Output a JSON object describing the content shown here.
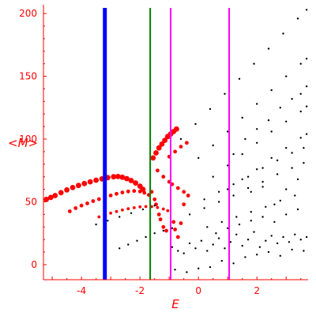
{
  "chart_data": {
    "type": "scatter",
    "title": "",
    "xlabel": "E",
    "ylabel": "<M>",
    "xlim": [
      -5.3,
      3.75
    ],
    "ylim": [
      -12,
      207
    ],
    "xticks": [
      -4,
      -2,
      0,
      2
    ],
    "yticks": [
      0,
      50,
      100,
      150,
      200
    ],
    "grid": false,
    "legend": "none",
    "colors": {
      "axis": "#ff0000",
      "red_series": "#ff0000",
      "black_series": "#000000",
      "blue_line": "#0000ff",
      "green_line": "#008000",
      "magenta_line": "#ff00ff"
    },
    "vertical_lines": [
      {
        "x": -3.2,
        "color": "#0000ff",
        "width": "thick"
      },
      {
        "x": -1.65,
        "color": "#008000",
        "width": "normal"
      },
      {
        "x": -0.95,
        "color": "#ff00ff",
        "width": "normal"
      },
      {
        "x": 1.05,
        "color": "#ff00ff",
        "width": "normal"
      }
    ],
    "series": [
      {
        "color": "#ff0000",
        "marker": "large",
        "points": [
          [
            -5.2,
            52
          ],
          [
            -5.05,
            53.5
          ],
          [
            -4.9,
            55
          ],
          [
            -4.7,
            57.3
          ],
          [
            -4.5,
            59.5
          ],
          [
            -4.3,
            61.4
          ],
          [
            -4.1,
            63.1
          ],
          [
            -3.9,
            64.6
          ],
          [
            -3.7,
            66
          ],
          [
            -3.5,
            67.2
          ],
          [
            -3.3,
            68.3
          ],
          [
            -3.1,
            69.3
          ],
          [
            -2.9,
            70
          ],
          [
            -2.75,
            70.2
          ],
          [
            -2.6,
            69.6
          ],
          [
            -2.45,
            68.5
          ],
          [
            -2.3,
            67
          ],
          [
            -2.15,
            65
          ],
          [
            -2.0,
            62.5
          ],
          [
            -1.9,
            60
          ]
        ]
      },
      {
        "color": "#ff0000",
        "marker": "medium",
        "points": [
          [
            -4.4,
            42.5
          ],
          [
            -4.2,
            45
          ],
          [
            -4.0,
            47
          ],
          [
            -3.8,
            48.8
          ],
          [
            -3.6,
            50.6
          ],
          [
            -3.4,
            52.2
          ],
          [
            -3.2,
            53.7
          ],
          [
            -3.0,
            55.1
          ],
          [
            -2.8,
            56.4
          ],
          [
            -2.6,
            57.5
          ],
          [
            -2.4,
            58.3
          ],
          [
            -2.2,
            58.7
          ],
          [
            -2.0,
            58.3
          ],
          [
            -1.85,
            57.2
          ],
          [
            -1.7,
            55.5
          ]
        ]
      },
      {
        "color": "#ff0000",
        "marker": "small",
        "points": [
          [
            -3.4,
            38
          ],
          [
            -3.2,
            39.5
          ],
          [
            -3.0,
            41
          ],
          [
            -2.8,
            42.3
          ],
          [
            -2.6,
            43.5
          ],
          [
            -2.4,
            44.5
          ],
          [
            -2.2,
            45.3
          ],
          [
            -2.0,
            46
          ],
          [
            -1.8,
            46.3
          ],
          [
            -1.6,
            46.2
          ],
          [
            -1.4,
            45.5
          ],
          [
            -1.2,
            44.3
          ],
          [
            -1.05,
            43
          ]
        ]
      },
      {
        "color": "#ff0000",
        "marker": "large",
        "points": [
          [
            -1.55,
            85
          ],
          [
            -1.45,
            89
          ],
          [
            -1.35,
            93
          ],
          [
            -1.25,
            96
          ],
          [
            -1.15,
            99
          ],
          [
            -1.05,
            102
          ],
          [
            -0.95,
            104
          ],
          [
            -0.85,
            106
          ],
          [
            -0.75,
            108
          ]
        ]
      },
      {
        "color": "#ff0000",
        "marker": "medium",
        "points": [
          [
            -1.0,
            86
          ],
          [
            -0.8,
            90
          ],
          [
            -0.6,
            94
          ],
          [
            -0.4,
            97
          ],
          [
            -1.4,
            75
          ],
          [
            -1.2,
            70
          ],
          [
            -1.0,
            66
          ],
          [
            -0.9,
            64
          ],
          [
            -0.7,
            61
          ],
          [
            -0.5,
            58
          ],
          [
            -0.35,
            55
          ],
          [
            -1.6,
            58
          ],
          [
            -1.5,
            52
          ],
          [
            -1.45,
            48
          ],
          [
            -1.35,
            40
          ],
          [
            -1.3,
            36
          ],
          [
            -1.2,
            30
          ],
          [
            -1.1,
            27
          ],
          [
            -0.85,
            34
          ],
          [
            -0.8,
            28
          ],
          [
            -0.7,
            22
          ],
          [
            -0.5,
            48
          ],
          [
            -0.6,
            33
          ]
        ]
      },
      {
        "color": "#000000",
        "marker": "tiny",
        "points": [
          [
            -0.6,
            100
          ],
          [
            -0.1,
            112
          ],
          [
            0.4,
            124
          ],
          [
            0.9,
            136
          ],
          [
            1.4,
            148
          ],
          [
            1.9,
            160
          ],
          [
            2.4,
            172
          ],
          [
            2.9,
            184
          ],
          [
            3.4,
            196
          ],
          [
            3.7,
            203
          ],
          [
            0.0,
            85
          ],
          [
            0.5,
            95
          ],
          [
            1.0,
            106
          ],
          [
            1.5,
            117
          ],
          [
            2.0,
            128
          ],
          [
            2.5,
            139
          ],
          [
            3.0,
            150
          ],
          [
            3.5,
            160
          ],
          [
            3.7,
            164
          ],
          [
            0.5,
            70
          ],
          [
            1.0,
            79
          ],
          [
            1.5,
            88
          ],
          [
            2.0,
            97
          ],
          [
            2.5,
            106
          ],
          [
            3.0,
            114
          ],
          [
            3.5,
            122
          ],
          [
            3.7,
            126
          ],
          [
            1.0,
            60
          ],
          [
            1.5,
            68
          ],
          [
            2.0,
            76
          ],
          [
            2.5,
            85
          ],
          [
            3.0,
            93
          ],
          [
            3.5,
            101
          ],
          [
            3.7,
            104
          ],
          [
            0.2,
            52
          ],
          [
            0.7,
            58
          ],
          [
            1.2,
            64
          ],
          [
            1.7,
            70
          ],
          [
            2.2,
            77
          ],
          [
            2.7,
            83
          ],
          [
            3.2,
            89
          ],
          [
            3.6,
            93
          ],
          [
            -0.3,
            40
          ],
          [
            0.2,
            45
          ],
          [
            0.7,
            50
          ],
          [
            1.2,
            55
          ],
          [
            1.7,
            61
          ],
          [
            2.2,
            66
          ],
          [
            2.7,
            72
          ],
          [
            3.2,
            77
          ],
          [
            3.6,
            81
          ],
          [
            -3.5,
            32
          ],
          [
            -3.1,
            35
          ],
          [
            -2.7,
            38
          ],
          [
            -2.3,
            41
          ],
          [
            -1.9,
            44
          ],
          [
            -1.5,
            47
          ],
          [
            -2.7,
            13
          ],
          [
            -2.4,
            16
          ],
          [
            -2.1,
            19
          ],
          [
            -1.8,
            22
          ],
          [
            -1.5,
            25
          ],
          [
            -1.2,
            27
          ],
          [
            -0.9,
            29
          ],
          [
            -0.9,
            14
          ],
          [
            -0.7,
            11
          ],
          [
            -0.5,
            9
          ],
          [
            -0.3,
            17
          ],
          [
            -0.1,
            13
          ],
          [
            0.1,
            19
          ],
          [
            0.3,
            11
          ],
          [
            0.5,
            16
          ],
          [
            0.7,
            21
          ],
          [
            0.9,
            13
          ],
          [
            1.1,
            18
          ],
          [
            1.3,
            24
          ],
          [
            1.5,
            15
          ],
          [
            1.7,
            20
          ],
          [
            1.9,
            26
          ],
          [
            2.1,
            14
          ],
          [
            2.3,
            19
          ],
          [
            2.5,
            23
          ],
          [
            2.7,
            17
          ],
          [
            2.9,
            22
          ],
          [
            3.1,
            18
          ],
          [
            3.3,
            24
          ],
          [
            3.5,
            20
          ],
          [
            3.7,
            22
          ],
          [
            -0.8,
            -4
          ],
          [
            -0.4,
            -6
          ],
          [
            0.0,
            -3
          ],
          [
            0.4,
            -2
          ],
          [
            0.8,
            3
          ],
          [
            1.2,
            1
          ],
          [
            1.6,
            6
          ],
          [
            2.0,
            8
          ],
          [
            2.4,
            10
          ],
          [
            2.8,
            7
          ],
          [
            3.2,
            12
          ],
          [
            3.6,
            11
          ],
          [
            0.3,
            30
          ],
          [
            0.8,
            34
          ],
          [
            1.3,
            38
          ],
          [
            1.8,
            42
          ],
          [
            2.3,
            46
          ],
          [
            2.8,
            51
          ],
          [
            3.3,
            55
          ],
          [
            0.6,
            25
          ],
          [
            1.0,
            29
          ],
          [
            1.4,
            32
          ],
          [
            1.8,
            35
          ],
          [
            2.2,
            38
          ],
          [
            2.6,
            34
          ],
          [
            3.0,
            40
          ],
          [
            3.4,
            44
          ],
          [
            1.2,
            88
          ],
          [
            1.6,
            100
          ],
          [
            2.0,
            108
          ],
          [
            2.4,
            115
          ],
          [
            2.8,
            125
          ],
          [
            3.2,
            132
          ],
          [
            3.5,
            136
          ],
          [
            3.7,
            142
          ],
          [
            1.8,
            58
          ],
          [
            2.2,
            62
          ],
          [
            2.6,
            48
          ],
          [
            3.0,
            60
          ],
          [
            3.4,
            68
          ]
        ]
      }
    ]
  }
}
